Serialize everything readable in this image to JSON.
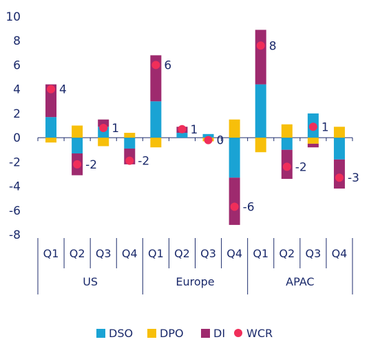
{
  "chart_data": {
    "type": "bar",
    "stacked": true,
    "ylim": [
      -8,
      10
    ],
    "yticks": [
      10,
      8,
      6,
      4,
      2,
      0,
      -2,
      -4,
      -6,
      -8
    ],
    "grid": false,
    "legend_position": "bottom",
    "categories": [
      "Q1",
      "Q2",
      "Q3",
      "Q4",
      "Q1",
      "Q2",
      "Q3",
      "Q4",
      "Q1",
      "Q2",
      "Q3",
      "Q4"
    ],
    "groups": [
      {
        "name": "US",
        "span": [
          0,
          3
        ]
      },
      {
        "name": "Europe",
        "span": [
          4,
          7
        ]
      },
      {
        "name": "APAC",
        "span": [
          8,
          11
        ]
      }
    ],
    "colors": {
      "DSO": "#1aa3d4",
      "DPO": "#f7bf0a",
      "DI": "#9e2a6e",
      "WCR": "#f02e5a"
    },
    "series": [
      {
        "name": "DSO",
        "values": [
          1.7,
          -1.3,
          0.9,
          -0.9,
          3.0,
          0.4,
          0.3,
          -3.3,
          4.4,
          -1.0,
          2.0,
          -1.8
        ]
      },
      {
        "name": "DPO",
        "values": [
          -0.4,
          1.0,
          -0.7,
          0.4,
          -0.8,
          0.0,
          -0.3,
          1.5,
          -1.2,
          1.1,
          -0.5,
          0.9
        ]
      },
      {
        "name": "DI",
        "values": [
          2.7,
          -1.8,
          0.6,
          -1.3,
          3.8,
          0.5,
          0.0,
          -3.9,
          4.5,
          -2.4,
          -0.3,
          -2.4
        ]
      },
      {
        "name": "WCR",
        "type": "point",
        "values": [
          4.0,
          -2.2,
          0.8,
          -1.9,
          6.0,
          0.7,
          -0.2,
          -5.7,
          7.6,
          -2.4,
          0.9,
          -3.3
        ]
      }
    ],
    "wcr_labels": [
      "4",
      "-2",
      "1",
      "-2",
      "6",
      "1",
      "0",
      "-6",
      "8",
      "-2",
      "1",
      "-3"
    ]
  }
}
